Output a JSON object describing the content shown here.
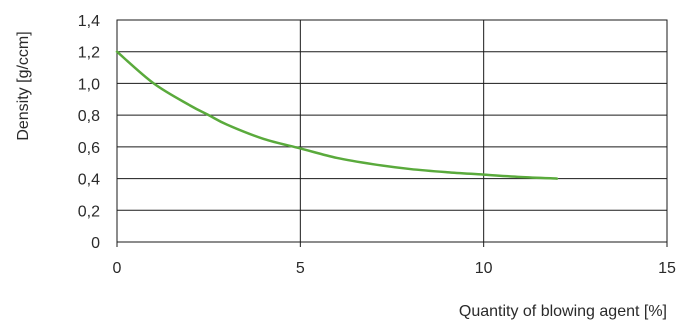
{
  "chart_data": {
    "type": "line",
    "title": "",
    "xlabel": "Quantity of blowing agent [%]",
    "ylabel": "Density [g/ccm]",
    "xlim": [
      0,
      15
    ],
    "ylim": [
      0,
      1.4
    ],
    "x_ticks": [
      0,
      5,
      10,
      15
    ],
    "x_tick_labels": [
      "0",
      "5",
      "10",
      "15"
    ],
    "y_ticks": [
      0,
      0.2,
      0.4,
      0.6,
      0.8,
      1.0,
      1.2,
      1.4
    ],
    "y_tick_labels": [
      "0",
      "0,2",
      "0,4",
      "0,6",
      "0,8",
      "1,0",
      "1,2",
      "1,4"
    ],
    "grid": true,
    "series": [
      {
        "color": "#5aaa3c",
        "x": [
          0,
          1,
          2,
          2.5,
          3,
          4,
          5,
          6,
          7,
          8,
          9,
          10,
          11,
          12
        ],
        "y": [
          1.2,
          1.0,
          0.86,
          0.8,
          0.74,
          0.65,
          0.59,
          0.53,
          0.49,
          0.46,
          0.44,
          0.425,
          0.41,
          0.4
        ]
      }
    ]
  }
}
